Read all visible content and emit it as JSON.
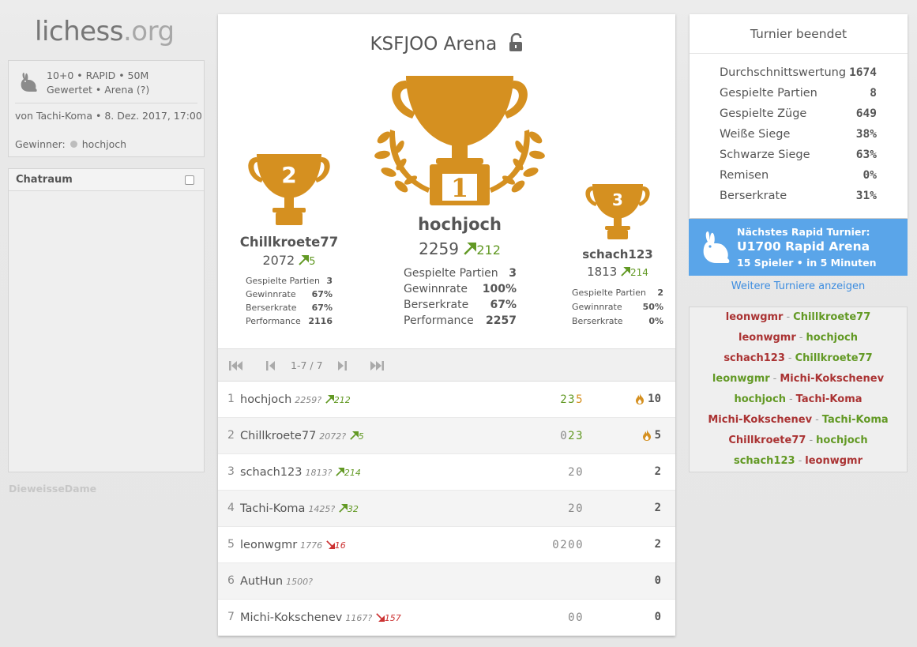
{
  "site": {
    "logo_main": "lichess",
    "logo_tld": ".org"
  },
  "tournament_info": {
    "setup_line1": "10+0 • RAPID • 50M",
    "setup_line2": "Gewertet • Arena (?)",
    "created_by": "von Tachi-Koma • 8. Dez. 2017, 17:00",
    "winner_label": "Gewinner:",
    "winner_name": "hochjoch"
  },
  "chat": {
    "title": "Chatraum"
  },
  "spectator": "DieweisseDame",
  "main": {
    "title": "KSFJOO Arena",
    "podium": {
      "first": {
        "place": "1",
        "name": "hochjoch",
        "rating": "2259",
        "diff": "212",
        "stats": [
          {
            "label": "Gespielte Partien",
            "value": "3"
          },
          {
            "label": "Gewinnrate",
            "value": "100%"
          },
          {
            "label": "Berserkrate",
            "value": "67%"
          },
          {
            "label": "Performance",
            "value": "2257"
          }
        ]
      },
      "second": {
        "place": "2",
        "name": "Chillkroete77",
        "rating": "2072",
        "diff": "5",
        "stats": [
          {
            "label": "Gespielte Partien",
            "value": "3"
          },
          {
            "label": "Gewinnrate",
            "value": "67%"
          },
          {
            "label": "Berserkrate",
            "value": "67%"
          },
          {
            "label": "Performance",
            "value": "2116"
          }
        ]
      },
      "third": {
        "place": "3",
        "name": "schach123",
        "rating": "1813",
        "diff": "214",
        "stats": [
          {
            "label": "Gespielte Partien",
            "value": "2"
          },
          {
            "label": "Gewinnrate",
            "value": "50%"
          },
          {
            "label": "Berserkrate",
            "value": "0%"
          }
        ]
      }
    },
    "pager": {
      "range": "1-7 / 7"
    },
    "standings": [
      {
        "rank": "1",
        "name": "hochjoch",
        "rating": "2259?",
        "diff": "212",
        "dir": "up",
        "sheet": [
          {
            "c": "2",
            "t": "g"
          },
          {
            "c": "3",
            "t": "g"
          },
          {
            "c": "5",
            "t": "o"
          }
        ],
        "total": "10",
        "fire": true
      },
      {
        "rank": "2",
        "name": "Chillkroete77",
        "rating": "2072?",
        "diff": "5",
        "dir": "up",
        "sheet": [
          {
            "c": "0",
            "t": "n"
          },
          {
            "c": "2",
            "t": "g"
          },
          {
            "c": "3",
            "t": "g"
          }
        ],
        "total": "5",
        "fire": true
      },
      {
        "rank": "3",
        "name": "schach123",
        "rating": "1813?",
        "diff": "214",
        "dir": "up",
        "sheet": [
          {
            "c": "2",
            "t": "n"
          },
          {
            "c": "0",
            "t": "n"
          }
        ],
        "total": "2",
        "fire": false
      },
      {
        "rank": "4",
        "name": "Tachi-Koma",
        "rating": "1425?",
        "diff": "32",
        "dir": "up",
        "sheet": [
          {
            "c": "2",
            "t": "n"
          },
          {
            "c": "0",
            "t": "n"
          }
        ],
        "total": "2",
        "fire": false
      },
      {
        "rank": "5",
        "name": "leonwgmr",
        "rating": "1776",
        "diff": "16",
        "dir": "down",
        "sheet": [
          {
            "c": "0",
            "t": "n"
          },
          {
            "c": "2",
            "t": "n"
          },
          {
            "c": "0",
            "t": "n"
          },
          {
            "c": "0",
            "t": "n"
          }
        ],
        "total": "2",
        "fire": false
      },
      {
        "rank": "6",
        "name": "AutHun",
        "rating": "1500?",
        "diff": "",
        "dir": "",
        "sheet": [],
        "total": "0",
        "fire": false
      },
      {
        "rank": "7",
        "name": "Michi-Kokschenev",
        "rating": "1167?",
        "diff": "157",
        "dir": "down",
        "sheet": [
          {
            "c": "0",
            "t": "n"
          },
          {
            "c": "0",
            "t": "n"
          }
        ],
        "total": "0",
        "fire": false
      }
    ]
  },
  "stats": {
    "title": "Turnier beendet",
    "rows": [
      {
        "label": "Durchschnittswertung",
        "value": "1674"
      },
      {
        "label": "Gespielte Partien",
        "value": "8"
      },
      {
        "label": "Gespielte Züge",
        "value": "649"
      },
      {
        "label": "Weiße Siege",
        "value": "38%"
      },
      {
        "label": "Schwarze Siege",
        "value": "63%"
      },
      {
        "label": "Remisen",
        "value": "0%"
      },
      {
        "label": "Berserkrate",
        "value": "31%"
      }
    ]
  },
  "next_tournament": {
    "label": "Nächstes Rapid Turnier:",
    "name": "U1700 Rapid Arena",
    "info": "15 Spieler • in 5 Minuten"
  },
  "more_link": "Weitere Turniere anzeigen",
  "games": [
    {
      "white": "leonwgmr",
      "black": "Chillkroete77",
      "winner": "black"
    },
    {
      "white": "leonwgmr",
      "black": "hochjoch",
      "winner": "black"
    },
    {
      "white": "schach123",
      "black": "Chillkroete77",
      "winner": "black"
    },
    {
      "white": "leonwgmr",
      "black": "Michi-Kokschenev",
      "winner": "white"
    },
    {
      "white": "hochjoch",
      "black": "Tachi-Koma",
      "winner": "white"
    },
    {
      "white": "Michi-Kokschenev",
      "black": "Tachi-Koma",
      "winner": "black"
    },
    {
      "white": "Chillkroete77",
      "black": "hochjoch",
      "winner": "black"
    },
    {
      "white": "schach123",
      "black": "leonwgmr",
      "winner": "white"
    }
  ],
  "colors": {
    "gold": "#d59020",
    "green": "#629924",
    "red": "#aa3333",
    "blue": "#5aa5e9"
  }
}
